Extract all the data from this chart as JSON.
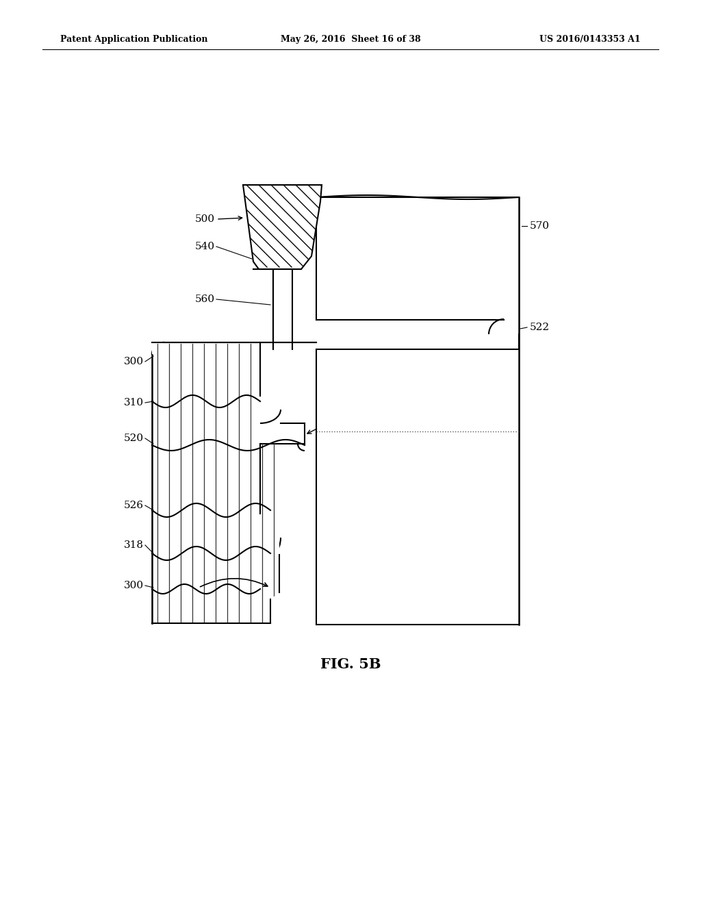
{
  "header_left": "Patent Application Publication",
  "header_mid": "May 26, 2016  Sheet 16 of 38",
  "header_right": "US 2016/0143353 A1",
  "figure_label": "FIG. 5B",
  "background_color": "#ffffff"
}
